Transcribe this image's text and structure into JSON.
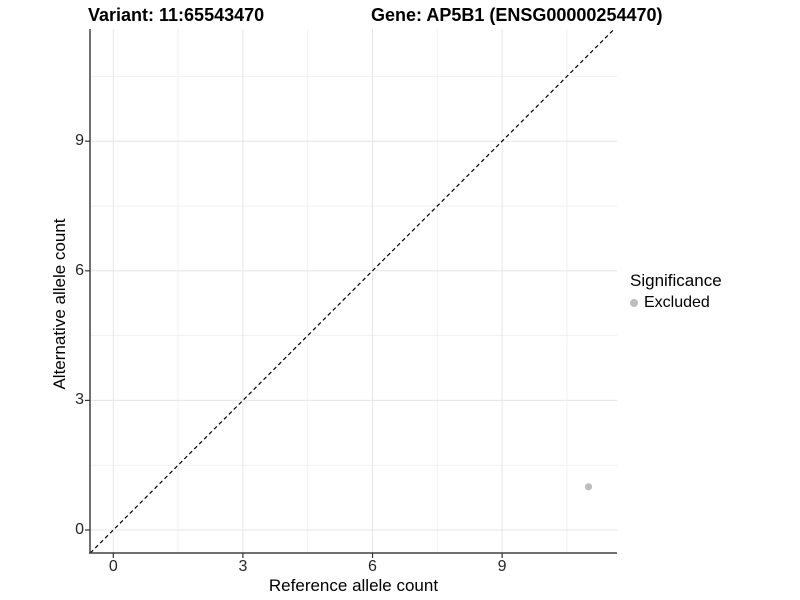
{
  "titles": {
    "variant": "Variant: 11:65543470",
    "gene": "Gene: AP5B1 (ENSG00000254470)"
  },
  "legend": {
    "title": "Significance",
    "items": [
      {
        "label": "Excluded",
        "color": "#bdbdbd"
      }
    ]
  },
  "colors": {
    "background": "#ffffff",
    "grid_major": "#e6e6e6",
    "grid_minor": "#f1f1f1",
    "axis_line": "#404040",
    "tick_mark": "#333333",
    "reference_line": "#000000",
    "point": "#bdbdbd"
  },
  "chart_data": {
    "type": "scatter",
    "title_left": "Variant: 11:65543470",
    "title_right": "Gene: AP5B1 (ENSG00000254470)",
    "xlabel": "Reference allele count",
    "ylabel": "Alternative allele count",
    "xlim": [
      -0.55,
      11.65
    ],
    "ylim": [
      -0.55,
      11.6
    ],
    "x_ticks": [
      0,
      3,
      6,
      9
    ],
    "y_ticks": [
      0,
      3,
      6,
      9
    ],
    "x_minor_gridlines": [
      1.5,
      4.5,
      7.5,
      10.5
    ],
    "y_minor_gridlines": [
      1.5,
      4.5,
      7.5,
      10.5
    ],
    "grid": "major and minor, light gray on white",
    "legend_position": "right",
    "reference_line": {
      "type": "identity",
      "equation": "y = x",
      "style": "dashed",
      "color": "#000000"
    },
    "series": [
      {
        "name": "Excluded",
        "color": "#bdbdbd",
        "points": [
          {
            "x": 11,
            "y": 1
          }
        ]
      }
    ]
  }
}
